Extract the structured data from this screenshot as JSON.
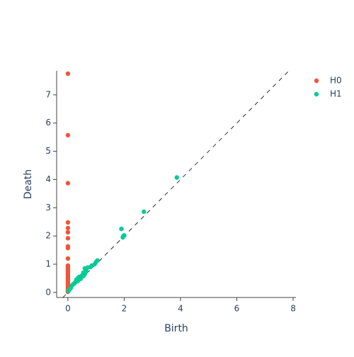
{
  "chart_data": {
    "type": "scatter",
    "x_label": "Birth",
    "y_label": "Death",
    "xlim": [
      -0.4,
      8.1
    ],
    "ylim": [
      -0.18,
      7.85
    ],
    "xticks": [
      0,
      2,
      4,
      6,
      8
    ],
    "yticks": [
      0,
      1,
      2,
      3,
      4,
      5,
      6,
      7
    ],
    "diagonal": true,
    "legend": "top-right",
    "series": [
      {
        "name": "H0",
        "color": "#EF553B",
        "x": [
          0,
          0,
          0,
          0,
          0,
          0,
          0,
          0,
          0,
          0,
          0,
          0,
          0,
          0,
          0,
          0,
          0,
          0,
          0,
          0,
          0,
          0,
          0,
          0,
          0,
          0,
          0,
          0,
          0,
          0
        ],
        "values": [
          7.75,
          5.57,
          3.87,
          2.48,
          2.28,
          2.13,
          1.92,
          1.63,
          1.57,
          1.2,
          0.95,
          0.9,
          0.85,
          0.8,
          0.75,
          0.7,
          0.65,
          0.6,
          0.55,
          0.5,
          0.45,
          0.4,
          0.35,
          0.3,
          0.25,
          0.2,
          0.15,
          0.1,
          0.05,
          0.02
        ]
      },
      {
        "name": "H1",
        "color": "#00CC96",
        "x": [
          3.87,
          2.7,
          1.9,
          1.95,
          1.97,
          2.0,
          1.05,
          1.0,
          0.95,
          0.85,
          0.8,
          0.7,
          0.6,
          0.65,
          0.55,
          0.5,
          0.45,
          0.4,
          0.35,
          0.3,
          0.25,
          0.2,
          0.15,
          0.1,
          0.05,
          0.02,
          0.35,
          0.45,
          0.55,
          0.6
        ],
        "values": [
          4.07,
          2.86,
          2.25,
          1.95,
          2.0,
          2.02,
          1.13,
          1.08,
          1.0,
          0.95,
          0.9,
          0.88,
          0.85,
          0.75,
          0.7,
          0.6,
          0.55,
          0.55,
          0.5,
          0.45,
          0.35,
          0.3,
          0.25,
          0.15,
          0.1,
          0.05,
          0.4,
          0.48,
          0.58,
          0.65
        ]
      }
    ]
  }
}
